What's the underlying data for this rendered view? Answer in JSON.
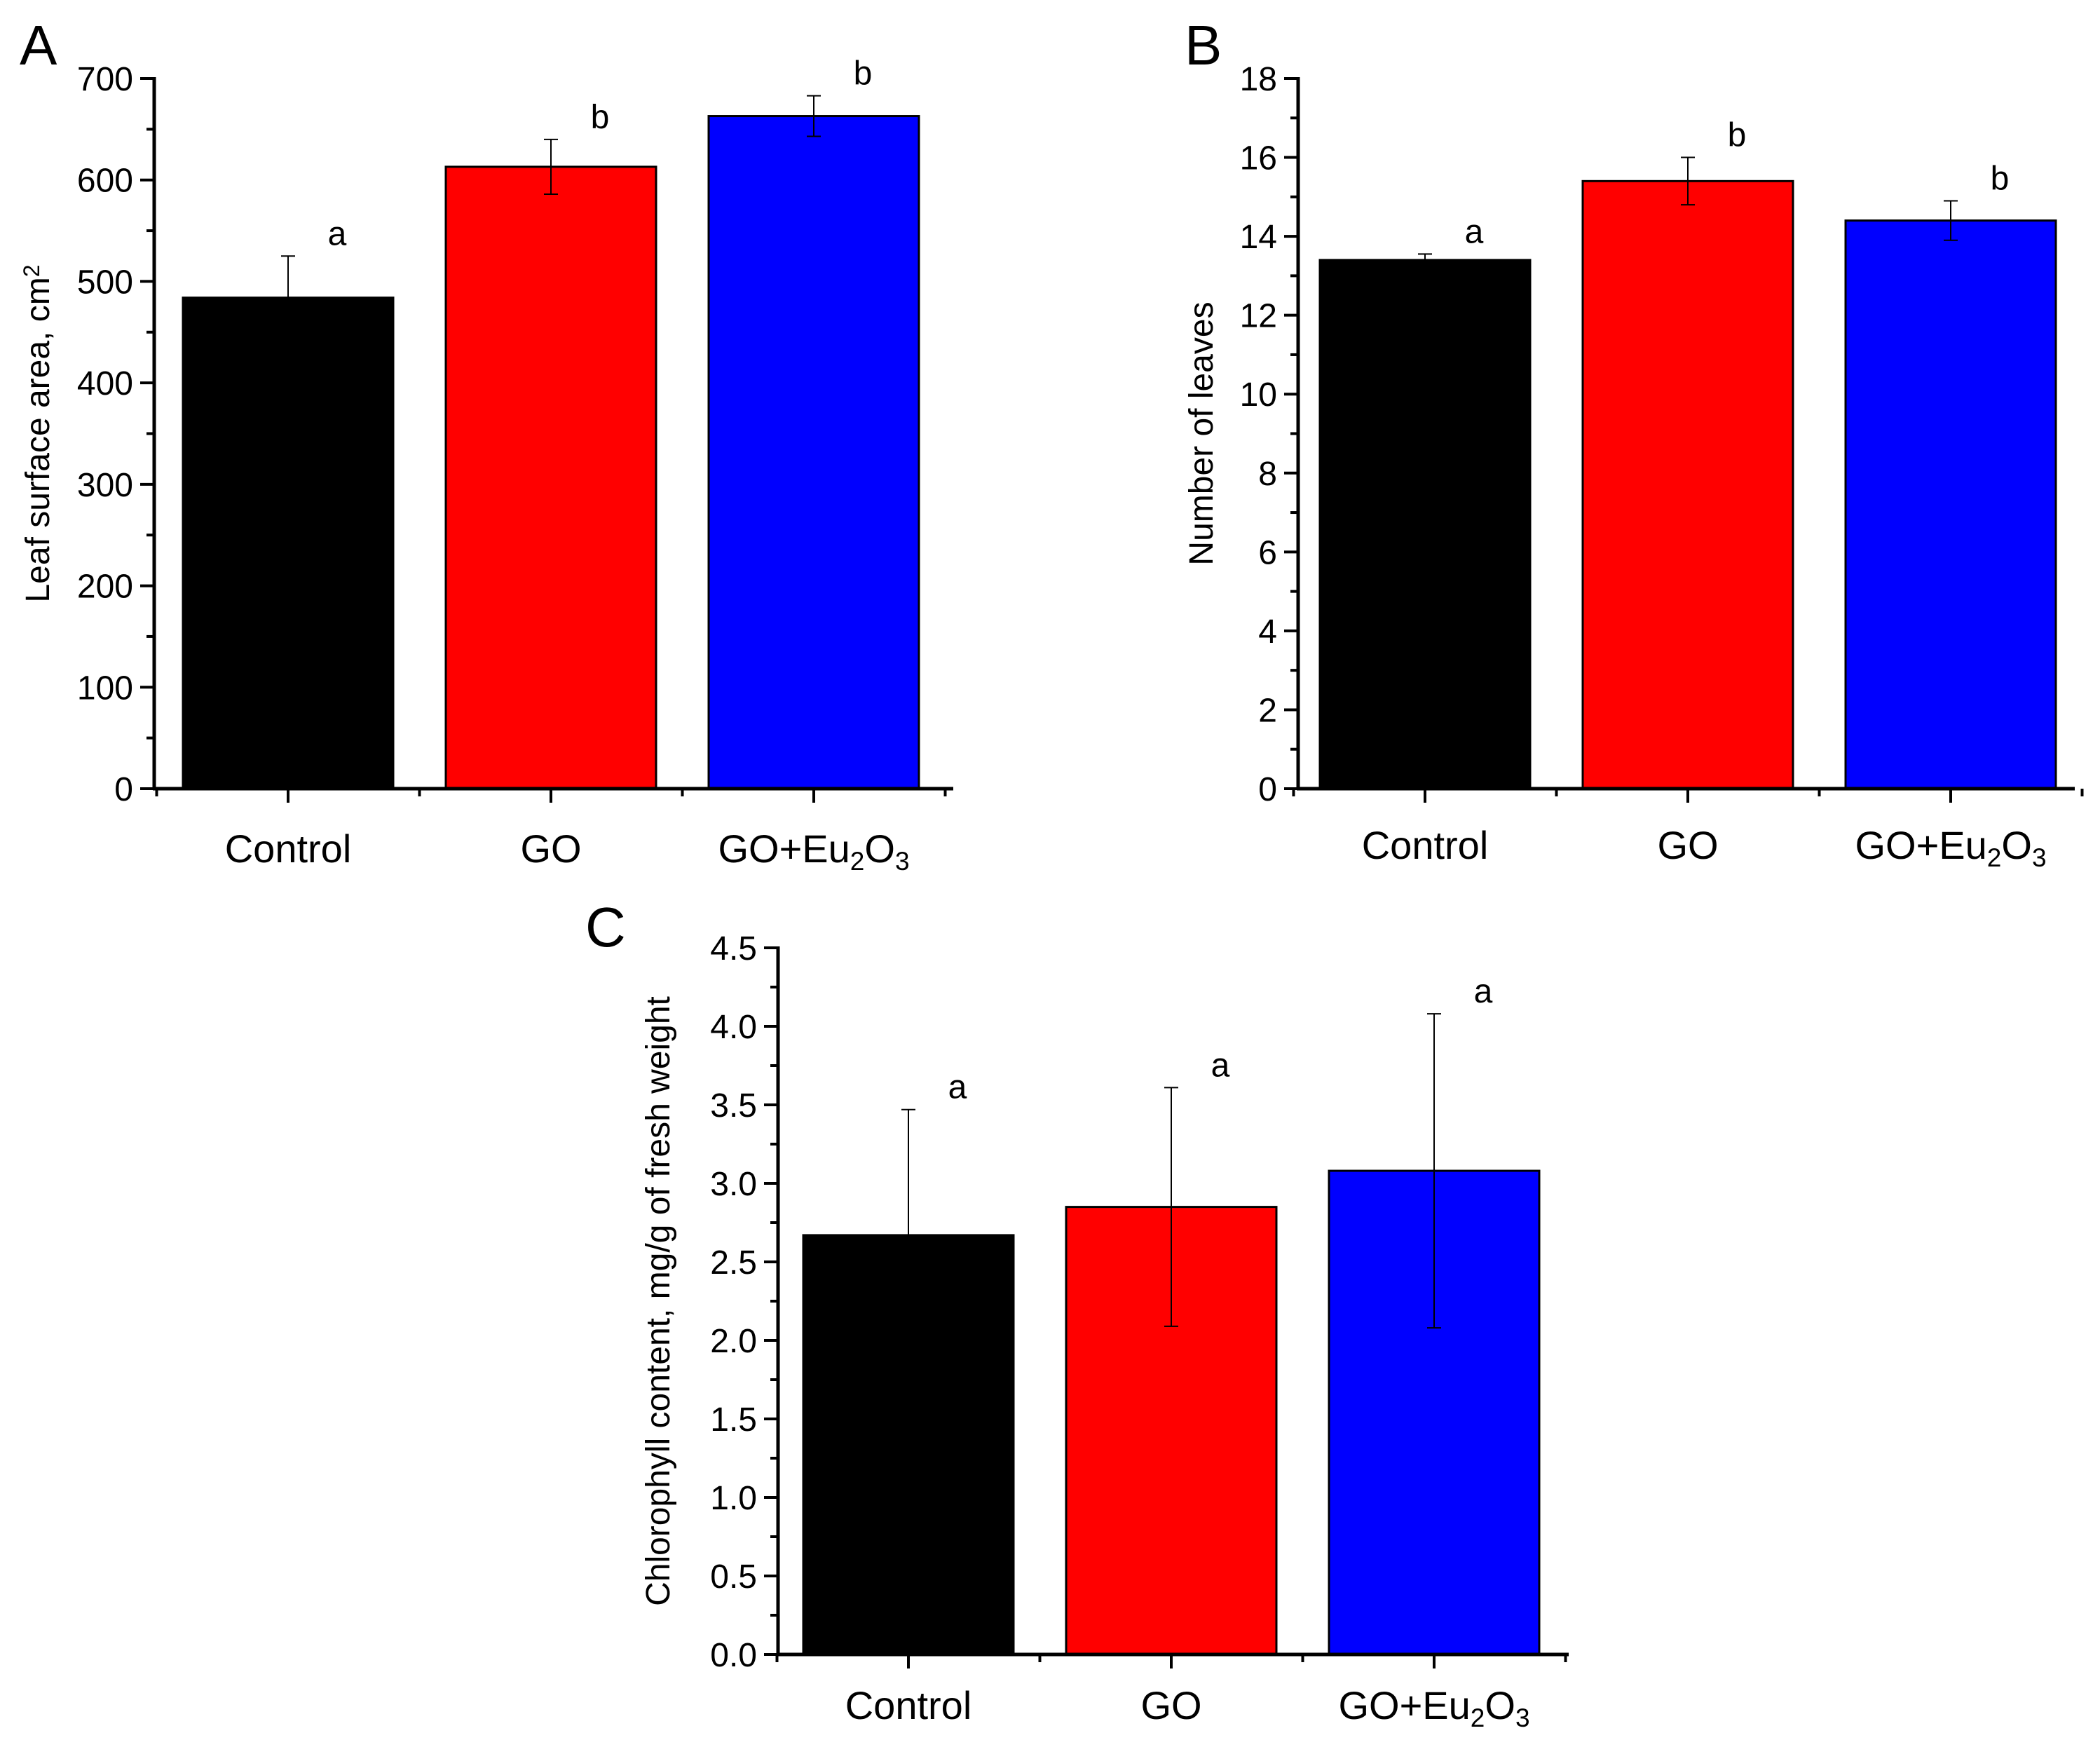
{
  "colors": {
    "Control": "#000000",
    "GO": "#ff0000",
    "GO+Eu2O3": "#0000ff",
    "axis": "#000000",
    "background": "#ffffff"
  },
  "chart_data": [
    {
      "panel": "A",
      "type": "bar",
      "categories": [
        "Control",
        "GO",
        "GO+Eu2O3"
      ],
      "category_labels": [
        [
          {
            "t": "Control",
            "s": ""
          }
        ],
        [
          {
            "t": "GO",
            "s": ""
          }
        ],
        [
          {
            "t": "GO+Eu",
            "s": ""
          },
          {
            "t": "2",
            "s": "sub"
          },
          {
            "t": "O",
            "s": ""
          },
          {
            "t": "3",
            "s": "sub"
          }
        ]
      ],
      "values": [
        484,
        613,
        663
      ],
      "errors": [
        41,
        27,
        20
      ],
      "significance": [
        "a",
        "b",
        "b"
      ],
      "ylabel": [
        {
          "t": "Leaf surface area, cm",
          "s": ""
        },
        {
          "t": "2",
          "s": "sup"
        }
      ],
      "ylim": [
        0,
        700
      ],
      "yticks": [
        0,
        100,
        200,
        300,
        400,
        500,
        600,
        700
      ],
      "ytick_labels": [
        "0",
        "100",
        "200",
        "300",
        "400",
        "500",
        "600",
        "700"
      ],
      "minor_step": 50
    },
    {
      "panel": "B",
      "type": "bar",
      "categories": [
        "Control",
        "GO",
        "GO+Eu2O3"
      ],
      "category_labels": [
        [
          {
            "t": "Control",
            "s": ""
          }
        ],
        [
          {
            "t": "GO",
            "s": ""
          }
        ],
        [
          {
            "t": "GO+Eu",
            "s": ""
          },
          {
            "t": "2",
            "s": "sub"
          },
          {
            "t": "O",
            "s": ""
          },
          {
            "t": "3",
            "s": "sub"
          }
        ]
      ],
      "values": [
        13.4,
        15.4,
        14.4
      ],
      "errors": [
        0.15,
        0.6,
        0.5
      ],
      "significance": [
        "a",
        "b",
        "b"
      ],
      "ylabel": [
        {
          "t": "Number of leaves",
          "s": ""
        }
      ],
      "ylim": [
        0,
        18
      ],
      "yticks": [
        0,
        2,
        4,
        6,
        8,
        10,
        12,
        14,
        16,
        18
      ],
      "ytick_labels": [
        "0",
        "2",
        "4",
        "6",
        "8",
        "10",
        "12",
        "14",
        "16",
        "18"
      ],
      "minor_step": 1
    },
    {
      "panel": "C",
      "type": "bar",
      "categories": [
        "Control",
        "GO",
        "GO+Eu2O3"
      ],
      "category_labels": [
        [
          {
            "t": "Control",
            "s": ""
          }
        ],
        [
          {
            "t": "GO",
            "s": ""
          }
        ],
        [
          {
            "t": "GO+Eu",
            "s": ""
          },
          {
            "t": "2",
            "s": "sub"
          },
          {
            "t": "O",
            "s": ""
          },
          {
            "t": "3",
            "s": "sub"
          }
        ]
      ],
      "values": [
        2.67,
        2.85,
        3.08
      ],
      "errors": [
        0.8,
        0.76,
        1.0
      ],
      "significance": [
        "a",
        "a",
        "a"
      ],
      "ylabel": [
        {
          "t": "Chlorophyll content, mg/g of fresh weight",
          "s": ""
        }
      ],
      "ylim": [
        0,
        4.5
      ],
      "yticks": [
        0,
        0.5,
        1,
        1.5,
        2,
        2.5,
        3,
        3.5,
        4,
        4.5
      ],
      "ytick_labels": [
        "0.0",
        "0.5",
        "1.0",
        "1.5",
        "2.0",
        "2.5",
        "3.0",
        "3.5",
        "4.0",
        "4.5"
      ],
      "minor_step": 0.25
    }
  ]
}
